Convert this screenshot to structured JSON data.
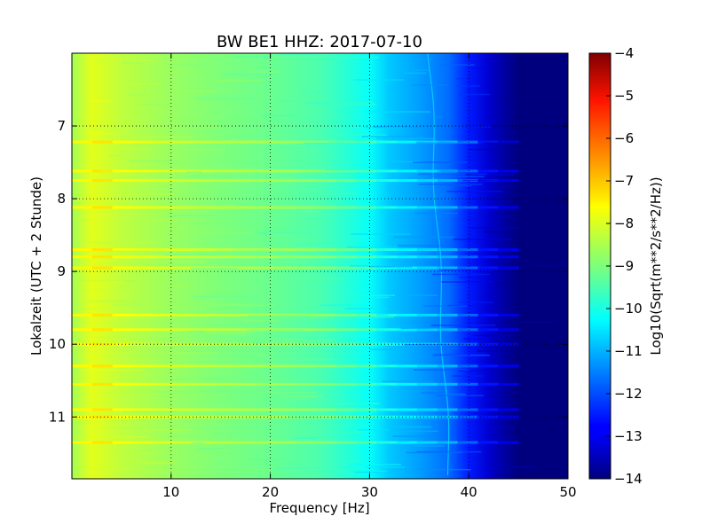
{
  "chart_data": {
    "type": "heatmap",
    "title": "BW BE1 HHZ: 2017-07-10",
    "xlabel": "Frequency [Hz]",
    "ylabel": "Lokalzeit (UTC + 2 Stunde)",
    "colorbar_label": "Log10(Sqrt(m**2/s**2/Hz))",
    "colormap": "jet",
    "grid": "dotted",
    "x_range": [
      0,
      50
    ],
    "y_range": [
      6.0,
      11.85
    ],
    "y_inverted": true,
    "x_ticks": [
      10,
      20,
      30,
      40,
      50
    ],
    "x_tick_labels": [
      "10",
      "20",
      "30",
      "40",
      "50"
    ],
    "y_ticks": [
      7,
      8,
      9,
      10,
      11
    ],
    "y_tick_labels": [
      "7",
      "8",
      "9",
      "10",
      "11"
    ],
    "color_range": [
      -14,
      -4
    ],
    "colorbar_ticks": [
      -4,
      -5,
      -6,
      -7,
      -8,
      -9,
      -10,
      -11,
      -12,
      -13,
      -14
    ],
    "colorbar_tick_labels": [
      "−4",
      "−5",
      "−6",
      "−7",
      "−8",
      "−9",
      "−10",
      "−11",
      "−12",
      "−13",
      "−14"
    ],
    "spectrum_profile": {
      "frequency_hz": [
        0,
        2,
        5,
        10,
        15,
        20,
        25,
        28,
        30,
        32,
        35,
        38,
        40,
        42,
        44,
        45,
        50
      ],
      "value": [
        -8.6,
        -7.9,
        -8.3,
        -8.7,
        -9.0,
        -9.2,
        -9.5,
        -9.9,
        -10.2,
        -10.8,
        -11.2,
        -11.7,
        -12.5,
        -13.3,
        -13.8,
        -14.0,
        -14.0
      ]
    },
    "bright_lines_hours": [
      7.22,
      7.62,
      7.75,
      8.12,
      8.7,
      8.8,
      8.95,
      9.6,
      9.8,
      10.0,
      10.3,
      10.55,
      10.9,
      11.0,
      11.35
    ]
  }
}
